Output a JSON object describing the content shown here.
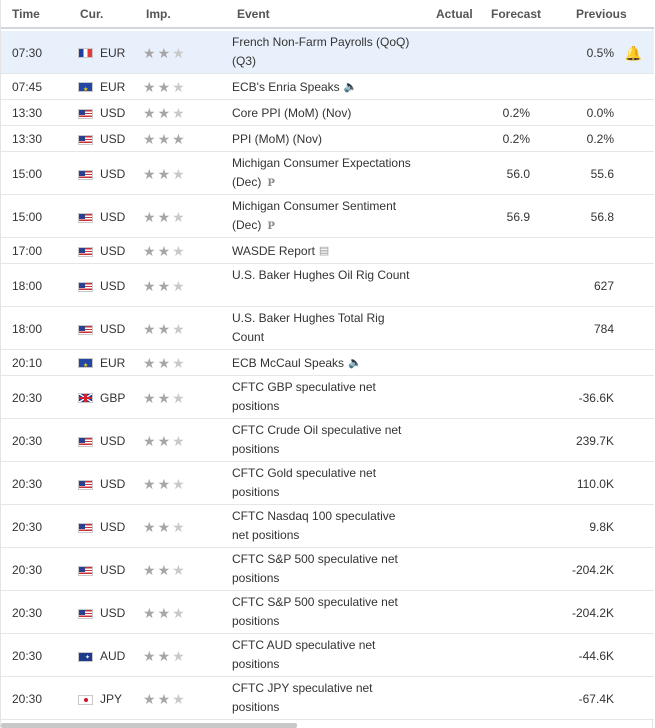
{
  "header": {
    "time": "Time",
    "currency": "Cur.",
    "importance": "Imp.",
    "event": "Event",
    "actual": "Actual",
    "forecast": "Forecast",
    "previous": "Previous"
  },
  "rows": [
    {
      "time": "07:30",
      "currency": "EUR",
      "flag": "fr",
      "stars": 2,
      "event": "French Non-Farm Payrolls (QoQ) (Q3)",
      "event_icon": "",
      "actual": "",
      "forecast": "",
      "previous": "0.5%",
      "highlight": true,
      "bell": true
    },
    {
      "time": "07:45",
      "currency": "EUR",
      "flag": "eu",
      "stars": 2,
      "event": "ECB's Enria Speaks",
      "event_icon": "speaker-icon",
      "actual": "",
      "forecast": "",
      "previous": ""
    },
    {
      "time": "13:30",
      "currency": "USD",
      "flag": "us",
      "stars": 2,
      "event": "Core PPI (MoM) (Nov)",
      "event_icon": "",
      "actual": "",
      "forecast": "0.2%",
      "previous": "0.0%"
    },
    {
      "time": "13:30",
      "currency": "USD",
      "flag": "us",
      "stars": 3,
      "event": "PPI (MoM) (Nov)",
      "event_icon": "",
      "actual": "",
      "forecast": "0.2%",
      "previous": "0.2%"
    },
    {
      "time": "15:00",
      "currency": "USD",
      "flag": "us",
      "stars": 2,
      "event": "Michigan Consumer Expectations (Dec)",
      "event_icon": "preliminary-icon",
      "actual": "",
      "forecast": "56.0",
      "previous": "55.6"
    },
    {
      "time": "15:00",
      "currency": "USD",
      "flag": "us",
      "stars": 2,
      "event": "Michigan Consumer Sentiment (Dec)",
      "event_icon": "preliminary-icon",
      "actual": "",
      "forecast": "56.9",
      "previous": "56.8"
    },
    {
      "time": "17:00",
      "currency": "USD",
      "flag": "us",
      "stars": 2,
      "event": "WASDE Report",
      "event_icon": "report-icon",
      "actual": "",
      "forecast": "",
      "previous": ""
    },
    {
      "time": "18:00",
      "currency": "USD",
      "flag": "us",
      "stars": 2,
      "event": "U.S. Baker Hughes Oil Rig Count",
      "event_icon": "",
      "actual": "",
      "forecast": "",
      "previous": "627"
    },
    {
      "time": "18:00",
      "currency": "USD",
      "flag": "us",
      "stars": 2,
      "event": "U.S. Baker Hughes Total Rig Count",
      "event_icon": "",
      "actual": "",
      "forecast": "",
      "previous": "784"
    },
    {
      "time": "20:10",
      "currency": "EUR",
      "flag": "eu",
      "stars": 2,
      "event": "ECB McCaul Speaks",
      "event_icon": "speaker-icon",
      "actual": "",
      "forecast": "",
      "previous": ""
    },
    {
      "time": "20:30",
      "currency": "GBP",
      "flag": "gb",
      "stars": 2,
      "event": "CFTC GBP speculative net positions",
      "event_icon": "",
      "actual": "",
      "forecast": "",
      "previous": "-36.6K"
    },
    {
      "time": "20:30",
      "currency": "USD",
      "flag": "us",
      "stars": 2,
      "event": "CFTC Crude Oil speculative net positions",
      "event_icon": "",
      "actual": "",
      "forecast": "",
      "previous": "239.7K"
    },
    {
      "time": "20:30",
      "currency": "USD",
      "flag": "us",
      "stars": 2,
      "event": "CFTC Gold speculative net positions",
      "event_icon": "",
      "actual": "",
      "forecast": "",
      "previous": "110.0K"
    },
    {
      "time": "20:30",
      "currency": "USD",
      "flag": "us",
      "stars": 2,
      "event": "CFTC Nasdaq 100 speculative net positions",
      "event_icon": "",
      "actual": "",
      "forecast": "",
      "previous": "9.8K"
    },
    {
      "time": "20:30",
      "currency": "USD",
      "flag": "us",
      "stars": 2,
      "event": "CFTC S&P 500 speculative net positions",
      "event_icon": "",
      "actual": "",
      "forecast": "",
      "previous": "-204.2K"
    },
    {
      "time": "20:30",
      "currency": "USD",
      "flag": "us",
      "stars": 2,
      "event": "CFTC S&P 500 speculative net positions",
      "event_icon": "",
      "actual": "",
      "forecast": "",
      "previous": "-204.2K"
    },
    {
      "time": "20:30",
      "currency": "AUD",
      "flag": "au",
      "stars": 2,
      "event": "CFTC AUD speculative net positions",
      "event_icon": "",
      "actual": "",
      "forecast": "",
      "previous": "-44.6K"
    },
    {
      "time": "20:30",
      "currency": "JPY",
      "flag": "jp",
      "stars": 2,
      "event": "CFTC JPY speculative net positions",
      "event_icon": "",
      "actual": "",
      "forecast": "",
      "previous": "-67.4K"
    }
  ]
}
